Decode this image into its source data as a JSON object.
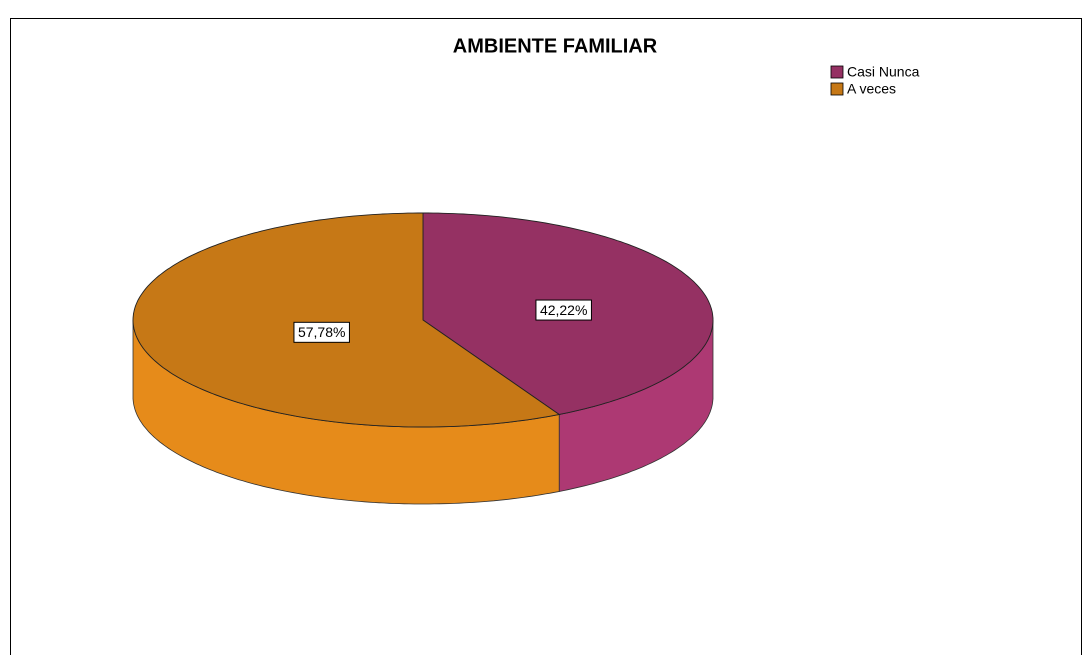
{
  "chart_data": {
    "type": "pie",
    "title": "AMBIENTE FAMILIAR",
    "categories": [
      "Casi Nunca",
      "A veces"
    ],
    "values": [
      42.22,
      57.78
    ],
    "value_labels": [
      "42,22%",
      "57,78%"
    ],
    "colors": [
      "#953163",
      "#c67816"
    ],
    "legend": "top-right"
  }
}
